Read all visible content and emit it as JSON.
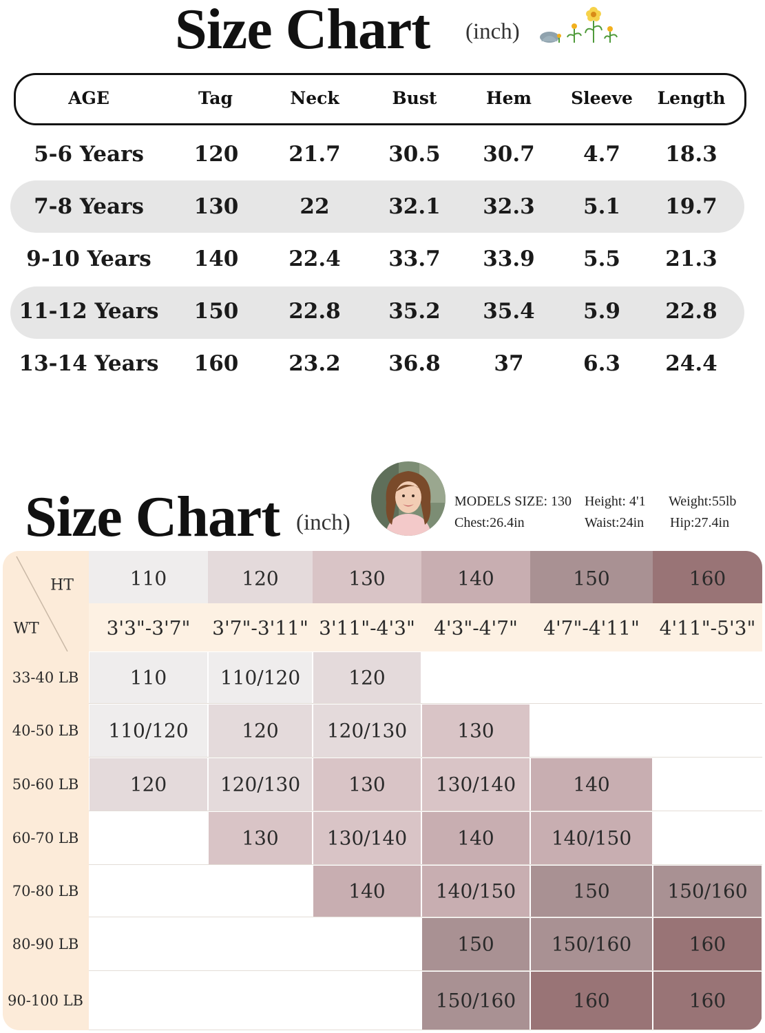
{
  "top_chart": {
    "title": "Size Chart",
    "unit": "(inch)",
    "decoration": "flower-sprouts-icon",
    "headers": [
      "AGE",
      "Tag",
      "Neck",
      "Bust",
      "Hem",
      "Sleeve",
      "Length"
    ],
    "rows": [
      [
        "5-6 Years",
        "120",
        "21.7",
        "30.5",
        "30.7",
        "4.7",
        "18.3"
      ],
      [
        "7-8 Years",
        "130",
        "22",
        "32.1",
        "32.3",
        "5.1",
        "19.7"
      ],
      [
        "9-10 Years",
        "140",
        "22.4",
        "33.7",
        "33.9",
        "5.5",
        "21.3"
      ],
      [
        "11-12 Years",
        "150",
        "22.8",
        "35.2",
        "35.4",
        "5.9",
        "22.8"
      ],
      [
        "13-14 Years",
        "160",
        "23.2",
        "36.8",
        "37",
        "6.3",
        "24.4"
      ]
    ]
  },
  "bottom_chart": {
    "title": "Size Chart",
    "unit": "(inch)",
    "model": {
      "size": "MODELS  SIZE: 130",
      "height": "Height: 4'1",
      "weight": "Weight:55lb",
      "chest": "Chest:26.4in",
      "waist": "Waist:24in",
      "hip": "Hip:27.4in"
    },
    "corner_top": "HT",
    "corner_bottom": "WT",
    "tags": [
      "110",
      "120",
      "130",
      "140",
      "150",
      "160"
    ],
    "heights": [
      "3'3\"-3'7\"",
      "3'7\"-3'11\"",
      "3'11\"-4'3\"",
      "4'3\"-4'7\"",
      "4'7\"-4'11\"",
      "4'11\"-5'3\""
    ],
    "weights": [
      "33-40 LB",
      "40-50 LB",
      "50-60 LB",
      "60-70 LB",
      "70-80 LB",
      "80-90 LB",
      "90-100 LB"
    ],
    "cells": [
      [
        "110",
        "110/120",
        "120",
        "",
        "",
        ""
      ],
      [
        "110/120",
        "120",
        "120/130",
        "130",
        "",
        ""
      ],
      [
        "120",
        "120/130",
        "130",
        "130/140",
        "140",
        ""
      ],
      [
        "",
        "130",
        "130/140",
        "140",
        "140/150",
        ""
      ],
      [
        "",
        "",
        "140",
        "140/150",
        "150",
        "150/160"
      ],
      [
        "",
        "",
        "",
        "150",
        "150/160",
        "160"
      ],
      [
        "",
        "",
        "",
        "150/160",
        "160",
        "160"
      ]
    ],
    "colors": {
      "s110": "#efeded",
      "s120": "#e4dadb",
      "s130": "#d9c4c6",
      "s140": "#c8aeb1",
      "s150": "#a99193",
      "s160": "#997476",
      "label_bg": "#fcebd9",
      "height_row_bg": "#fdf1e3"
    }
  }
}
